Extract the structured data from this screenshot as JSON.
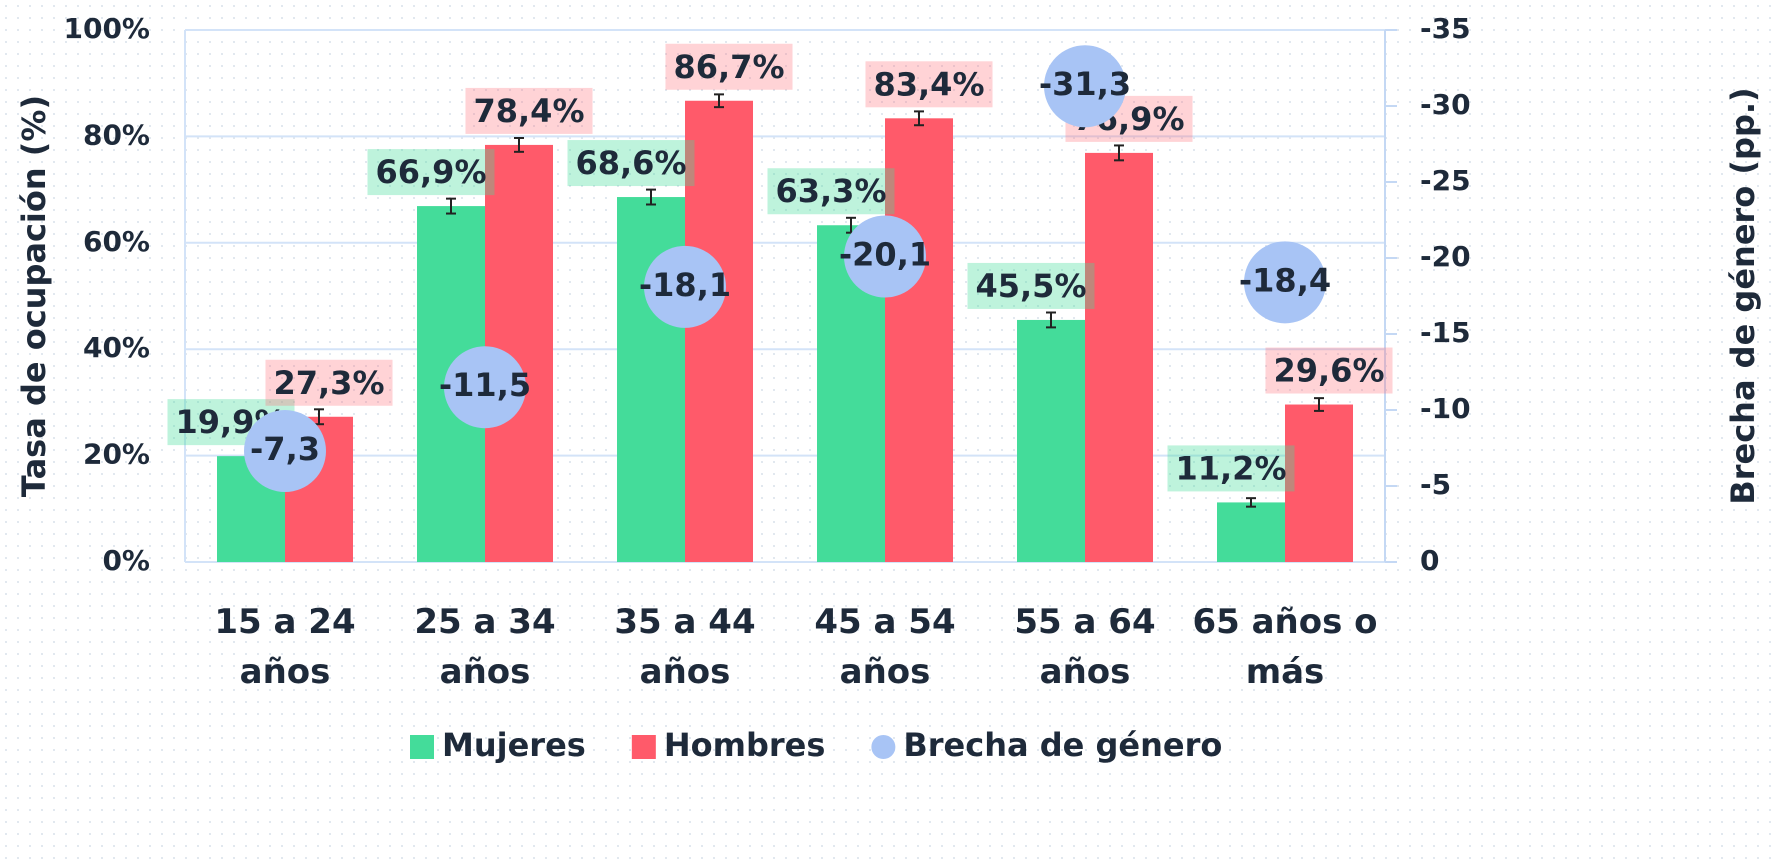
{
  "chart_data": {
    "type": "bar",
    "y_label": "Tasa de ocupación (%)",
    "y2_label": "Brecha de género (pp.)",
    "categories": [
      "15 a 24 años",
      "25 a 34 años",
      "35 a 44 años",
      "45 a 54 años",
      "55 a 64 años",
      "65 años o más"
    ],
    "series": [
      {
        "name": "Mujeres",
        "type": "bar",
        "color": "#44dc9a",
        "values": [
          19.9,
          66.9,
          68.6,
          63.3,
          45.5,
          11.2
        ],
        "value_labels": [
          "19,9%",
          "66,9%",
          "68,6%",
          "63,3%",
          "45,5%",
          "11,2%"
        ],
        "errors": [
          1.3,
          1.4,
          1.4,
          1.4,
          1.4,
          0.8
        ]
      },
      {
        "name": "Hombres",
        "type": "bar",
        "color": "#ff5a6a",
        "values": [
          27.3,
          78.4,
          86.7,
          83.4,
          76.9,
          29.6
        ],
        "value_labels": [
          "27,3%",
          "78,4%",
          "86,7%",
          "83,4%",
          "76,9%",
          "29,6%"
        ],
        "errors": [
          1.4,
          1.3,
          1.2,
          1.3,
          1.4,
          1.2
        ]
      },
      {
        "name": "Brecha de género",
        "type": "scatter",
        "axis": "y2",
        "color": "#a8c4f5",
        "values": [
          -7.3,
          -11.5,
          -18.1,
          -20.1,
          -31.3,
          -18.4
        ],
        "value_labels": [
          "-7,3",
          "-11,5",
          "-18,1",
          "-20,1",
          "-31,3",
          "-18,4"
        ]
      }
    ],
    "ylim": [
      0,
      100
    ],
    "yticks": [
      {
        "value": 0,
        "label": "0%"
      },
      {
        "value": 20,
        "label": "20%"
      },
      {
        "value": 40,
        "label": "40%"
      },
      {
        "value": 60,
        "label": "60%"
      },
      {
        "value": 80,
        "label": "80%"
      },
      {
        "value": 100,
        "label": "100%"
      }
    ],
    "y2lim": [
      0,
      -35
    ],
    "y2ticks": [
      0,
      -5,
      -10,
      -15,
      -20,
      -25,
      -30,
      -35
    ],
    "grid": true,
    "legend": "bottom"
  }
}
